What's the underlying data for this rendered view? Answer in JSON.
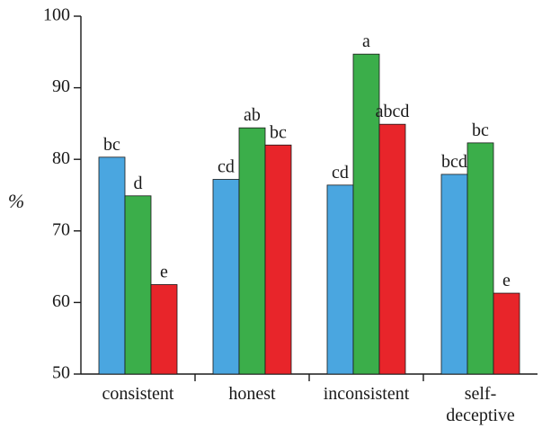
{
  "chart_data": {
    "type": "bar",
    "categories": [
      "consistent",
      "honest",
      "inconsistent",
      "self-deceptive"
    ],
    "category_lines": [
      [
        "consistent"
      ],
      [
        "honest"
      ],
      [
        "inconsistent"
      ],
      [
        "self-",
        "deceptive"
      ]
    ],
    "series": [
      {
        "color": "#4aa6e0",
        "values": [
          80.3,
          77.2,
          76.4,
          77.9
        ],
        "labels": [
          "bc",
          "cd",
          "cd",
          "bcd"
        ]
      },
      {
        "color": "#3bae4a",
        "values": [
          74.9,
          84.4,
          94.7,
          82.3
        ],
        "labels": [
          "d",
          "ab",
          "a",
          "bc"
        ]
      },
      {
        "color": "#e8252a",
        "values": [
          62.5,
          82.0,
          84.9,
          61.3
        ],
        "labels": [
          "e",
          "bc",
          "abcd",
          "e"
        ]
      }
    ],
    "ylabel": "%",
    "ylim": [
      50,
      100
    ],
    "yticks": [
      50,
      60,
      70,
      80,
      90,
      100
    ],
    "grid": false,
    "legend": "none"
  }
}
